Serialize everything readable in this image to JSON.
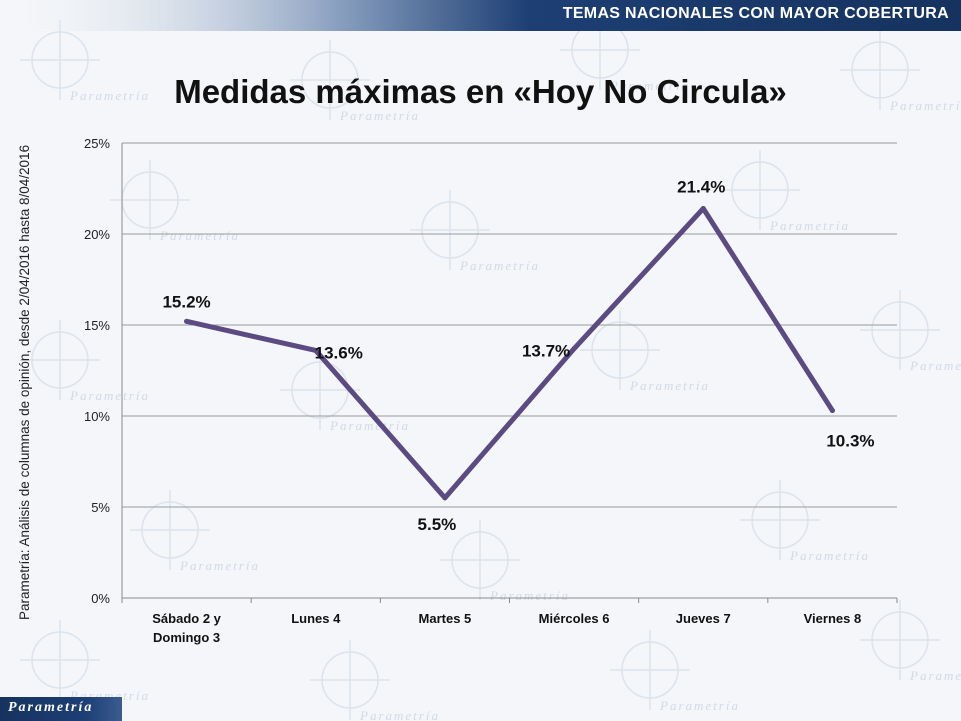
{
  "header": {
    "banner": "TEMAS NACIONALES CON MAYOR COBERTURA"
  },
  "source_note": "Parametría: Análisis de columnas de opinión, desde 2/04/2016 hasta 8/04/2016",
  "footer": {
    "brand": "Parametría"
  },
  "watermark_text": "Parametría",
  "colors": {
    "line": "#5c4a82",
    "banner": "#1d3f74",
    "grid": "#9a9a9a",
    "background": "#f4f6f9"
  },
  "chart_data": {
    "type": "line",
    "title": "Medidas máximas en «Hoy No Circula»",
    "categories": [
      [
        "Sábado 2 y",
        "Domingo 3"
      ],
      [
        "Lunes 4"
      ],
      [
        "Martes 5"
      ],
      [
        "Miércoles 6"
      ],
      [
        "Jueves 7"
      ],
      [
        "Viernes 8"
      ]
    ],
    "values": [
      15.2,
      13.6,
      5.5,
      13.7,
      21.4,
      10.3
    ],
    "data_labels": [
      "15.2%",
      "13.6%",
      "5.5%",
      "13.7%",
      "21.4%",
      "10.3%"
    ],
    "yticks": [
      "0%",
      "5%",
      "10%",
      "15%",
      "20%",
      "25%"
    ],
    "ylim": [
      0,
      25
    ],
    "grid": true,
    "legend": "none",
    "xlabel": "",
    "ylabel": ""
  }
}
